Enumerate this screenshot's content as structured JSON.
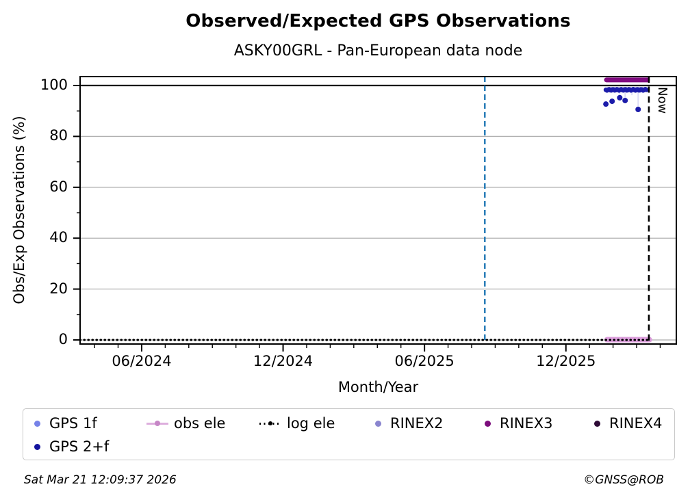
{
  "footer": {
    "timestamp": "Sat Mar 21 12:09:37 2026",
    "copyright": "©GNSS@ROB"
  },
  "chart_data": {
    "type": "scatter",
    "title": "Observed/Expected GPS Observations",
    "subtitle": "ASKY00GRL - Pan-European data node",
    "xlabel": "Month/Year",
    "ylabel": "Obs/Exp Observations (%)",
    "x_domain_decimal_years": [
      2024.199,
      2026.307
    ],
    "ylim": [
      -1.6,
      103.5
    ],
    "x_ticks": [
      {
        "value": 2024.4167,
        "label": "06/2024"
      },
      {
        "value": 2024.9167,
        "label": "12/2024"
      },
      {
        "value": 2025.4167,
        "label": "06/2025"
      },
      {
        "value": 2025.9167,
        "label": "12/2025"
      }
    ],
    "x_minor_ticks_every_months": 1,
    "y_ticks": [
      {
        "value": 0,
        "label": "0"
      },
      {
        "value": 20,
        "label": "20"
      },
      {
        "value": 40,
        "label": "40"
      },
      {
        "value": 60,
        "label": "60"
      },
      {
        "value": 80,
        "label": "80"
      },
      {
        "value": 100,
        "label": "100"
      }
    ],
    "y_minor_ticks": [
      10,
      30,
      50,
      70,
      90
    ],
    "grid": {
      "y_values": [
        0,
        20,
        40,
        60,
        80
      ],
      "color": "#b0b0b0"
    },
    "lines": {
      "hundred_percent": {
        "y": 100,
        "color": "#000000",
        "style": "solid",
        "width": 2.2
      },
      "vertical_dashed_blue": {
        "x": 2025.63,
        "color": "#1f77b4",
        "style": "dashed",
        "width": 2.4
      },
      "now": {
        "x": 2026.21,
        "color": "#000000",
        "style": "dashed",
        "width": 2.6,
        "label": "Now"
      }
    },
    "series": [
      {
        "name": "GPS 1f",
        "color": "#7682e8",
        "role": "scatter",
        "note": "mostly hidden behind GPS 2+f, visible as pale dip connectors",
        "dip_color": "#dcdcf5",
        "dip_segments": [
          [
            2026.107,
            98.3,
            95.2
          ],
          [
            2026.126,
            98.3,
            94.1
          ],
          [
            2026.15,
            98.3,
            96.2
          ],
          [
            2026.172,
            98.3,
            90.6
          ]
        ]
      },
      {
        "name": "GPS 2+f",
        "color": "#1c1caa",
        "role": "scatter",
        "band": {
          "x_start": 2026.058,
          "x_end": 2026.205,
          "y": 98.3
        },
        "outliers": [
          [
            2026.058,
            92.7
          ],
          [
            2026.08,
            93.8
          ],
          [
            2026.107,
            95.2
          ],
          [
            2026.126,
            94.1
          ],
          [
            2026.172,
            90.6
          ]
        ]
      },
      {
        "name": "obs ele",
        "color": "#dda0dd",
        "role": "thick-line",
        "band": {
          "x_start": 2026.062,
          "x_end": 2026.212,
          "y": 0.1
        }
      },
      {
        "name": "log ele",
        "color": "#000000",
        "role": "dotted-line",
        "y": 0,
        "x_range": [
          2024.199,
          2026.21
        ]
      },
      {
        "name": "RINEX2",
        "color": "#8a85cf",
        "role": "scatter",
        "points": []
      },
      {
        "name": "RINEX3",
        "color": "#800b80",
        "role": "thick-line",
        "band": {
          "x_start": 2026.06,
          "x_end": 2026.205,
          "y": 102.2
        }
      },
      {
        "name": "RINEX4",
        "color": "#2e0b36",
        "role": "scatter",
        "points": []
      }
    ],
    "legend": {
      "items": [
        {
          "label": "GPS 1f",
          "marker": "dot",
          "color": "#7682e8"
        },
        {
          "label": "obs ele",
          "marker": "line-dot",
          "line_color": "#ddaedd",
          "dot_color": "#c687c6"
        },
        {
          "label": "log ele",
          "marker": "dotted-line",
          "color": "#000000"
        },
        {
          "label": "RINEX2",
          "marker": "dot",
          "color": "#8a85cf"
        },
        {
          "label": "RINEX3",
          "marker": "dot",
          "color": "#7c0d7c"
        },
        {
          "label": "RINEX4",
          "marker": "dot",
          "color": "#2e0b36"
        },
        {
          "label": "GPS 2+f",
          "marker": "dot",
          "color": "#13139e"
        }
      ]
    }
  }
}
